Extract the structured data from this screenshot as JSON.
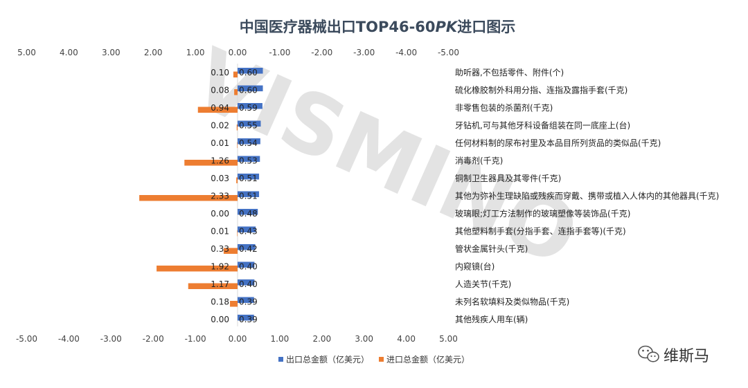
{
  "chart_data": {
    "type": "bar",
    "orientation": "horizontal",
    "title": "中国医疗器械出口TOP46-60PK进口图示",
    "title_italic_part": "PK",
    "top_axis_ticks": [
      "5.00",
      "4.00",
      "3.00",
      "2.00",
      "1.00",
      "0.00",
      "-1.00",
      "-2.00",
      "-3.00",
      "-4.00",
      "-5.00"
    ],
    "bottom_axis_ticks": [
      "-5.00",
      "-4.00",
      "-3.00",
      "-2.00",
      "-1.00",
      "0.00",
      "1.00",
      "2.00",
      "3.00",
      "4.00",
      "5.00"
    ],
    "xlim": [
      -5,
      5
    ],
    "categories": [
      "助听器,不包括零件、附件(个)",
      "硫化橡胶制外科用分指、连指及露指手套(千克)",
      "非零售包装的杀菌剂(千克)",
      "牙钻机,可与其他牙科设备组装在同一底座上(台)",
      "任何材料制的尿布衬里及本品目所列货品的类似品(千克)",
      "消毒剂(千克)",
      "铜制卫生器具及其零件(千克)",
      "其他为弥补生理缺陷或残疾而穿戴、携带或植入人体内的其他器具(千克)",
      "玻璃眼;灯工方法制作的玻璃塑像等装饰品(千克)",
      "其他塑料制手套(分指手套、连指手套等)(千克)",
      "管状金属针头(千克)",
      "内窥镜(台)",
      "人造关节(千克)",
      "未列名软填料及类似物品(千克)",
      "其他残疾人用车(辆)"
    ],
    "series": [
      {
        "name": "出口总金额（亿美元）",
        "color": "#4472c4",
        "values": [
          0.6,
          0.6,
          0.59,
          0.55,
          0.54,
          0.53,
          0.51,
          0.51,
          0.48,
          0.43,
          0.42,
          0.4,
          0.4,
          0.39,
          0.39
        ],
        "labels": [
          "0.60",
          "0.60",
          "0.59",
          "0.55",
          "0.54",
          "0.53",
          "0.51",
          "0.51",
          "0.48",
          "0.43",
          "0.42",
          "0.40",
          "0.40",
          "0.39",
          "0.39"
        ]
      },
      {
        "name": "进口总金额（亿美元）",
        "color": "#ed7d31",
        "values": [
          0.1,
          0.08,
          0.94,
          0.02,
          0.01,
          1.26,
          0.03,
          2.33,
          0.0,
          0.01,
          0.33,
          1.92,
          1.17,
          0.18,
          0.0
        ],
        "labels": [
          "0.10",
          "0.08",
          "0.94",
          "0.02",
          "0.01",
          "1.26",
          "0.03",
          "2.33",
          "0.00",
          "0.01",
          "0.33",
          "1.92",
          "1.17",
          "0.18",
          "0.00"
        ]
      }
    ],
    "legend_position": "bottom",
    "grid": false
  },
  "watermark": "VISMINO",
  "brand": {
    "name": "维斯马",
    "icon": "wechat-icon"
  }
}
